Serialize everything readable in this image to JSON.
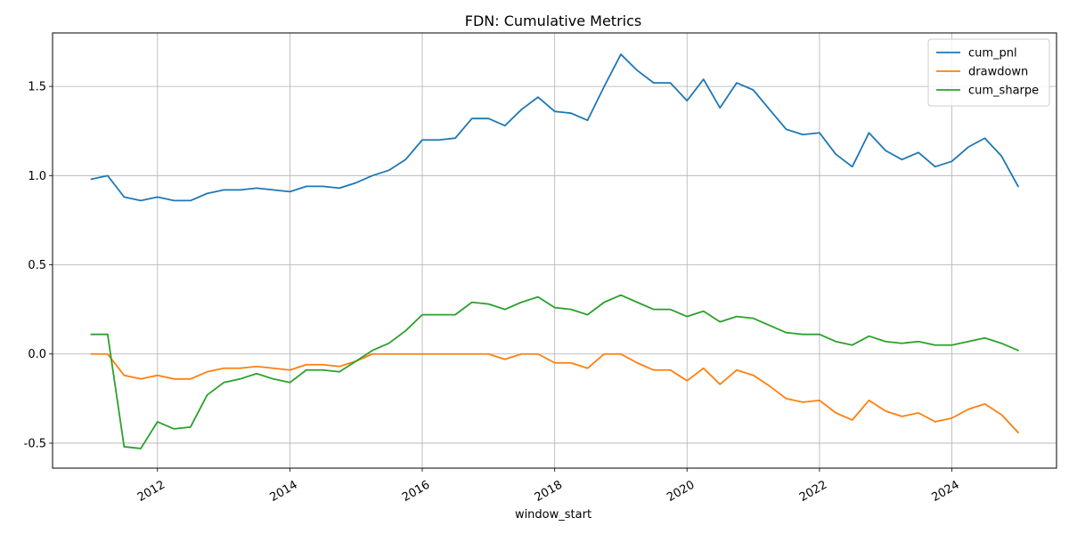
{
  "chart_data": {
    "type": "line",
    "title": "FDN: Cumulative Metrics",
    "xlabel": "window_start",
    "ylabel": "",
    "xlim": [
      "2010-06-01",
      "2025-08-01"
    ],
    "ylim": [
      -0.64,
      1.8
    ],
    "x_ticks": [
      "2012",
      "2014",
      "2016",
      "2018",
      "2020",
      "2022",
      "2024"
    ],
    "y_ticks": [
      -0.5,
      0.0,
      0.5,
      1.0,
      1.5
    ],
    "grid": true,
    "legend_position": "top-right",
    "x": [
      "2011-01-01",
      "2011-04-01",
      "2011-07-01",
      "2011-10-01",
      "2012-01-01",
      "2012-04-01",
      "2012-07-01",
      "2012-10-01",
      "2013-01-01",
      "2013-04-01",
      "2013-07-01",
      "2013-10-01",
      "2014-01-01",
      "2014-04-01",
      "2014-07-01",
      "2014-10-01",
      "2015-01-01",
      "2015-04-01",
      "2015-07-01",
      "2015-10-01",
      "2016-01-01",
      "2016-04-01",
      "2016-07-01",
      "2016-10-01",
      "2017-01-01",
      "2017-04-01",
      "2017-07-01",
      "2017-10-01",
      "2018-01-01",
      "2018-04-01",
      "2018-07-01",
      "2018-10-01",
      "2019-01-01",
      "2019-04-01",
      "2019-07-01",
      "2019-10-01",
      "2020-01-01",
      "2020-04-01",
      "2020-07-01",
      "2020-10-01",
      "2021-01-01",
      "2021-04-01",
      "2021-07-01",
      "2021-10-01",
      "2022-01-01",
      "2022-04-01",
      "2022-07-01",
      "2022-10-01",
      "2023-01-01",
      "2023-04-01",
      "2023-07-01",
      "2023-10-01",
      "2024-01-01",
      "2024-04-01",
      "2024-07-01",
      "2024-10-01",
      "2025-01-01"
    ],
    "series": [
      {
        "name": "cum_pnl",
        "color": "#1f77b4",
        "values": [
          0.98,
          1.0,
          0.88,
          0.86,
          0.88,
          0.86,
          0.86,
          0.9,
          0.92,
          0.92,
          0.93,
          0.92,
          0.91,
          0.94,
          0.94,
          0.93,
          0.96,
          1.0,
          1.03,
          1.09,
          1.2,
          1.2,
          1.21,
          1.32,
          1.32,
          1.28,
          1.37,
          1.44,
          1.36,
          1.35,
          1.31,
          1.5,
          1.68,
          1.59,
          1.52,
          1.52,
          1.42,
          1.54,
          1.38,
          1.52,
          1.48,
          1.37,
          1.26,
          1.23,
          1.24,
          1.12,
          1.05,
          1.24,
          1.14,
          1.09,
          1.13,
          1.05,
          1.08,
          1.16,
          1.21,
          1.11,
          0.94
        ]
      },
      {
        "name": "drawdown",
        "color": "#ff7f0e",
        "values": [
          0.0,
          0.0,
          -0.12,
          -0.14,
          -0.12,
          -0.14,
          -0.14,
          -0.1,
          -0.08,
          -0.08,
          -0.07,
          -0.08,
          -0.09,
          -0.06,
          -0.06,
          -0.07,
          -0.04,
          0.0,
          0.0,
          0.0,
          0.0,
          0.0,
          0.0,
          0.0,
          0.0,
          -0.03,
          0.0,
          0.0,
          -0.05,
          -0.05,
          -0.08,
          0.0,
          0.0,
          -0.05,
          -0.09,
          -0.09,
          -0.15,
          -0.08,
          -0.17,
          -0.09,
          -0.12,
          -0.18,
          -0.25,
          -0.27,
          -0.26,
          -0.33,
          -0.37,
          -0.26,
          -0.32,
          -0.35,
          -0.33,
          -0.38,
          -0.36,
          -0.31,
          -0.28,
          -0.34,
          -0.44
        ]
      },
      {
        "name": "cum_sharpe",
        "color": "#2ca02c",
        "values": [
          0.11,
          0.11,
          -0.52,
          -0.53,
          -0.38,
          -0.42,
          -0.41,
          -0.23,
          -0.16,
          -0.14,
          -0.11,
          -0.14,
          -0.16,
          -0.09,
          -0.09,
          -0.1,
          -0.04,
          0.02,
          0.06,
          0.13,
          0.22,
          0.22,
          0.22,
          0.29,
          0.28,
          0.25,
          0.29,
          0.32,
          0.26,
          0.25,
          0.22,
          0.29,
          0.33,
          0.29,
          0.25,
          0.25,
          0.21,
          0.24,
          0.18,
          0.21,
          0.2,
          0.16,
          0.12,
          0.11,
          0.11,
          0.07,
          0.05,
          0.1,
          0.07,
          0.06,
          0.07,
          0.05,
          0.05,
          0.07,
          0.09,
          0.06,
          0.02
        ]
      }
    ]
  }
}
